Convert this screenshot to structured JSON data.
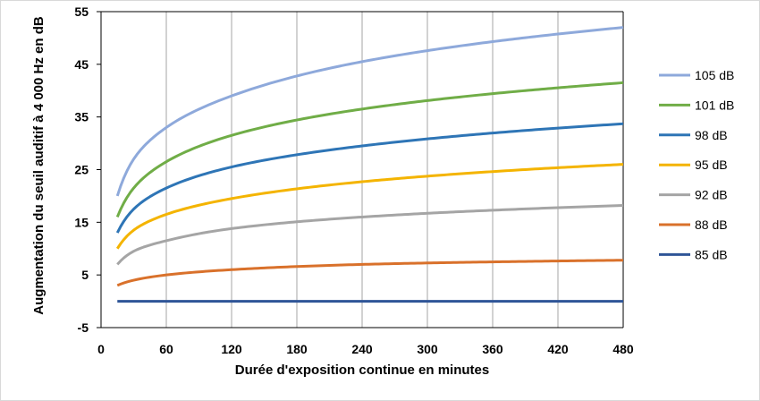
{
  "chart_data": {
    "type": "line",
    "title": "",
    "xlabel": "Durée d'exposition continue en minutes",
    "ylabel": "Augmentation du seuil auditif à 4 000 Hz en dB",
    "xlim": [
      0,
      480
    ],
    "ylim": [
      -5,
      55
    ],
    "xticks": [
      0,
      60,
      120,
      180,
      240,
      300,
      360,
      420,
      480
    ],
    "yticks": [
      -5,
      5,
      15,
      25,
      35,
      45,
      55
    ],
    "grid": "vertical",
    "legend_position": "right",
    "x": [
      15,
      30,
      60,
      120,
      240,
      480
    ],
    "series": [
      {
        "name": "105 dB",
        "color": "#8EA9DB",
        "values": [
          20,
          27,
          33,
          39,
          45.5,
          52
        ]
      },
      {
        "name": "101 dB",
        "color": "#70AD47",
        "values": [
          16,
          21.5,
          26.5,
          31.5,
          36.5,
          41.5
        ]
      },
      {
        "name": "98 dB",
        "color": "#2E75B6",
        "values": [
          13,
          17.5,
          21.5,
          25.5,
          29.5,
          33.7
        ]
      },
      {
        "name": "95 dB",
        "color": "#F4B400",
        "values": [
          10,
          13.5,
          16.5,
          19.5,
          22.7,
          26
        ]
      },
      {
        "name": "92 dB",
        "color": "#A5A5A5",
        "values": [
          7,
          9.5,
          11.5,
          13.8,
          16,
          18.2
        ]
      },
      {
        "name": "88 dB",
        "color": "#D9712B",
        "values": [
          3,
          4,
          5,
          6,
          7,
          7.8
        ]
      },
      {
        "name": "85 dB",
        "color": "#2F5597",
        "values": [
          0,
          0,
          0,
          0,
          0,
          0
        ]
      }
    ]
  }
}
